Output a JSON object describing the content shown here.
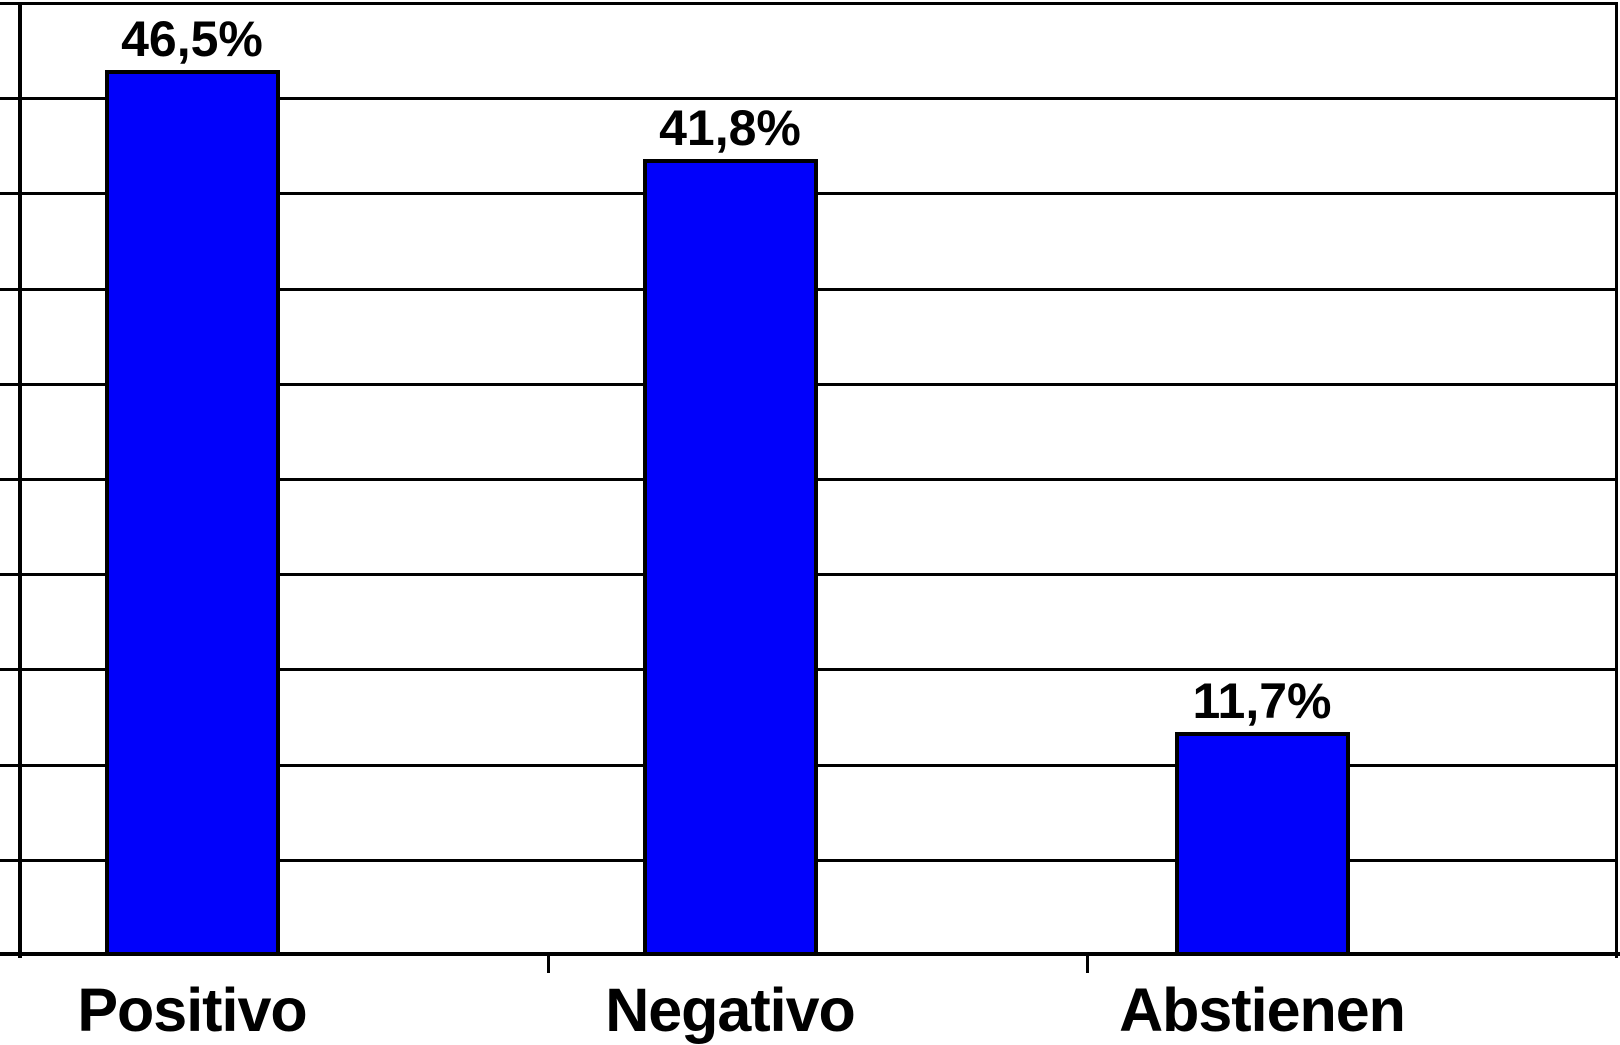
{
  "chart_data": {
    "type": "bar",
    "title": "",
    "xlabel": "",
    "ylabel": "",
    "categories": [
      "Positivo",
      "Negativo",
      "Abstienen"
    ],
    "values": [
      46.5,
      41.8,
      11.7
    ],
    "value_labels": [
      "46,5%",
      "41,8%",
      "11,7%"
    ],
    "ylim": [
      0,
      50
    ],
    "ytick_step": 5,
    "ytick_labels_visible": false,
    "grid": "horizontal",
    "legend": "none",
    "bar_color": "#0101fb",
    "bar_border_color": "#000000",
    "axis_color": "#000000",
    "text_color": "#000000",
    "background_color": "#ffffff"
  }
}
